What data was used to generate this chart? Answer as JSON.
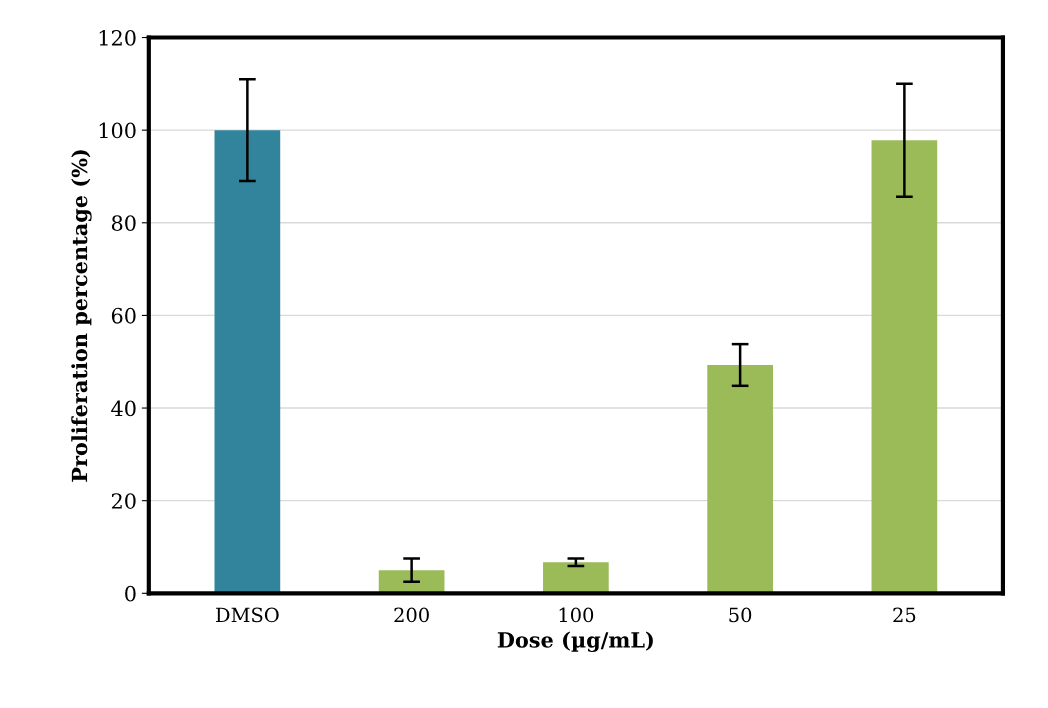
{
  "chart_data": {
    "type": "bar",
    "xlabel": "Dose (µg/mL)",
    "ylabel": "Proliferation percentage (%)",
    "categories": [
      "DMSO",
      "200",
      "100",
      "50",
      "25"
    ],
    "values": [
      100,
      5,
      6.7,
      49.3,
      97.8
    ],
    "colors": [
      "#31849b",
      "#9bbb59",
      "#9bbb59",
      "#9bbb59",
      "#9bbb59"
    ],
    "errors": [
      11,
      2.5,
      0.8,
      4.5,
      12.2
    ],
    "ylim": [
      0,
      120
    ],
    "yticks": [
      0,
      20,
      40,
      60,
      80,
      100,
      120
    ],
    "grid": "y"
  }
}
